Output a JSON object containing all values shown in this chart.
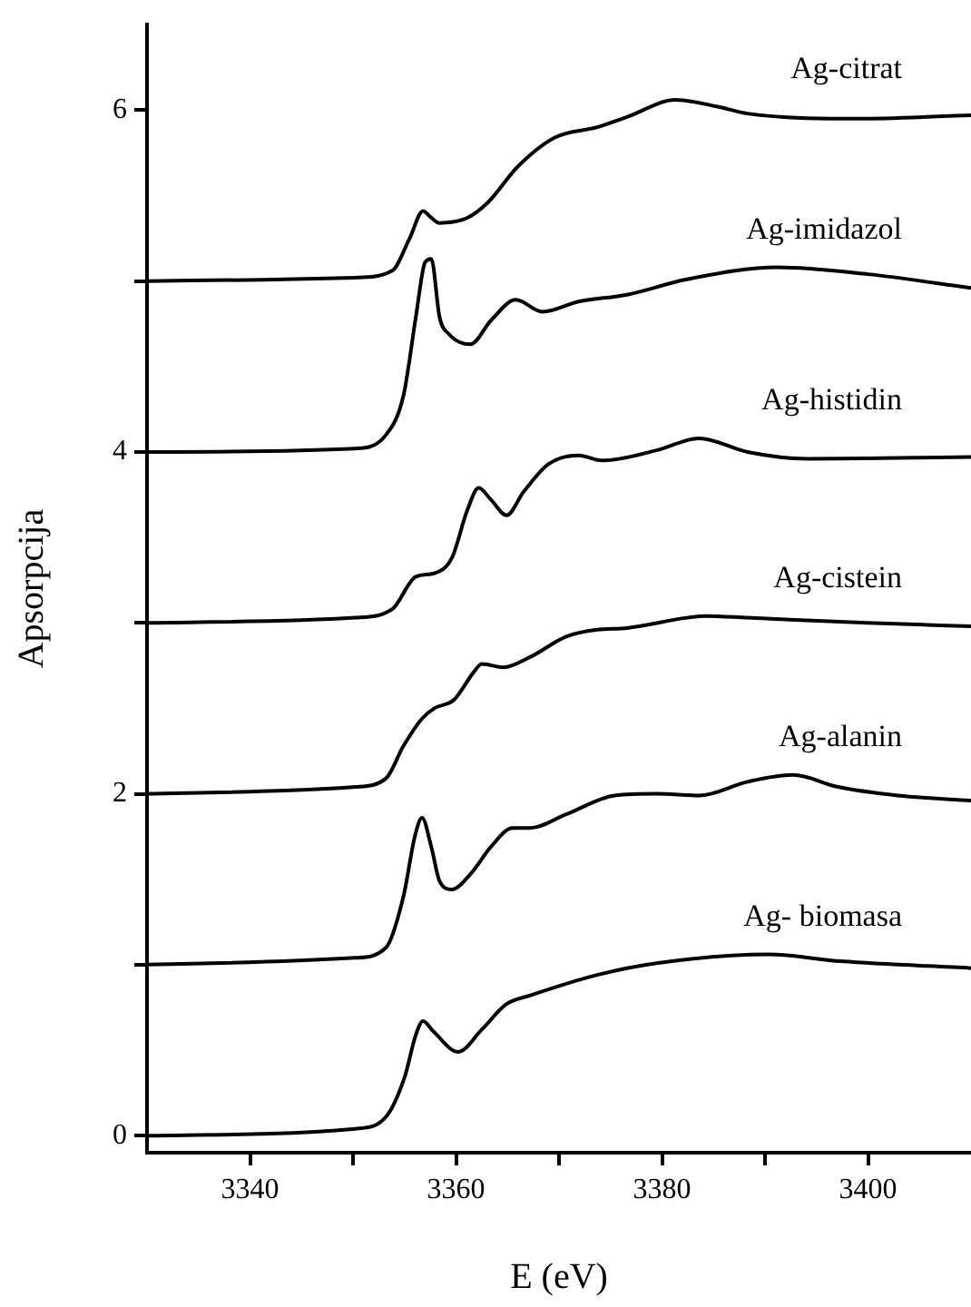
{
  "chart_data": {
    "type": "line",
    "xlabel": "E (eV)",
    "ylabel": "Apsorpcija",
    "xlim": [
      3330,
      3410
    ],
    "ylim": [
      -0.1,
      6.5
    ],
    "xticks": [
      3340,
      {
        "value": 3350,
        "label": null
      },
      3360,
      {
        "value": 3370,
        "label": null
      },
      3380,
      {
        "value": 3390,
        "label": null
      },
      3400
    ],
    "yticks": [
      0,
      {
        "value": 1,
        "label": null
      },
      2,
      {
        "value": 3,
        "label": null
      },
      4,
      {
        "value": 5,
        "label": null
      },
      6
    ],
    "grid": false,
    "legend": false,
    "marker": "none",
    "line_style": "solid",
    "series": [
      {
        "name": "Ag-citrat",
        "color": "#000000",
        "x": [
          3330,
          3350.2,
          3353.8,
          3355.5,
          3356.8,
          3357.6,
          3358.4,
          3361.1,
          3363.1,
          3366.0,
          3369.6,
          3373.7,
          3376.6,
          3381.3,
          3385.4,
          3388.3,
          3398.8,
          3410
        ],
        "values": [
          5.0,
          5.02,
          5.06,
          5.25,
          5.41,
          5.37,
          5.34,
          5.37,
          5.46,
          5.67,
          5.84,
          5.9,
          5.96,
          6.06,
          6.02,
          5.98,
          5.95,
          5.97
        ]
      },
      {
        "name": "Ag-imidazol",
        "color": "#000000",
        "x": [
          3330,
          3350.2,
          3353.2,
          3354.9,
          3356.1,
          3357.0,
          3357.6,
          3358.4,
          3359.3,
          3361.4,
          3363.4,
          3365.8,
          3368.4,
          3371.9,
          3376.6,
          3382.4,
          3391.2,
          3400.0,
          3410
        ],
        "values": [
          4.0,
          4.02,
          4.1,
          4.33,
          4.79,
          5.11,
          5.13,
          4.79,
          4.69,
          4.63,
          4.77,
          4.89,
          4.82,
          4.88,
          4.92,
          5.01,
          5.08,
          5.04,
          4.96
        ]
      },
      {
        "name": "Ag-histidin",
        "color": "#000000",
        "x": [
          3330,
          3350.2,
          3353.8,
          3356.1,
          3357.9,
          3359.6,
          3361.1,
          3362.2,
          3363.4,
          3364.9,
          3366.6,
          3369.0,
          3371.9,
          3374.2,
          3379.5,
          3383.6,
          3388.3,
          3394.1,
          3410
        ],
        "values": [
          3.0,
          3.03,
          3.08,
          3.27,
          3.29,
          3.38,
          3.66,
          3.79,
          3.72,
          3.63,
          3.77,
          3.93,
          3.98,
          3.95,
          4.01,
          4.08,
          4.0,
          3.96,
          3.97
        ]
      },
      {
        "name": "Ag-cistein",
        "color": "#000000",
        "x": [
          3330,
          3350.2,
          3353.2,
          3354.9,
          3356.7,
          3357.9,
          3359.8,
          3361.7,
          3362.5,
          3364.6,
          3367.2,
          3370.7,
          3373.7,
          3376.6,
          3382.4,
          3384.2,
          3388.3,
          3400.0,
          3410
        ],
        "values": [
          2.0,
          2.04,
          2.09,
          2.28,
          2.44,
          2.5,
          2.55,
          2.71,
          2.76,
          2.74,
          2.8,
          2.92,
          2.96,
          2.97,
          3.03,
          3.04,
          3.03,
          3.0,
          2.98
        ]
      },
      {
        "name": "Ag-alanin",
        "color": "#000000",
        "x": [
          3330,
          3350.2,
          3353.2,
          3354.9,
          3356.0,
          3356.7,
          3357.6,
          3358.4,
          3359.6,
          3361.4,
          3363.4,
          3365.5,
          3367.2,
          3370.7,
          3375.4,
          3379.5,
          3383.6,
          3388.3,
          3392.7,
          3397.1,
          3402.9,
          3410
        ],
        "values": [
          1.0,
          1.04,
          1.1,
          1.4,
          1.75,
          1.86,
          1.69,
          1.49,
          1.44,
          1.53,
          1.69,
          1.8,
          1.8,
          1.88,
          1.99,
          2.0,
          1.99,
          2.07,
          2.11,
          2.04,
          1.99,
          1.96
        ]
      },
      {
        "name": "Ag- biomasa",
        "color": "#000000",
        "x": [
          3330,
          3350.2,
          3353.2,
          3355.0,
          3356.1,
          3356.8,
          3357.8,
          3360.2,
          3362.5,
          3364.9,
          3367.2,
          3373.7,
          3379.6,
          3390.3,
          3397.4,
          3410
        ],
        "values": [
          0.0,
          0.04,
          0.11,
          0.34,
          0.59,
          0.67,
          0.61,
          0.49,
          0.62,
          0.77,
          0.82,
          0.94,
          1.01,
          1.06,
          1.02,
          0.98
        ]
      }
    ]
  }
}
